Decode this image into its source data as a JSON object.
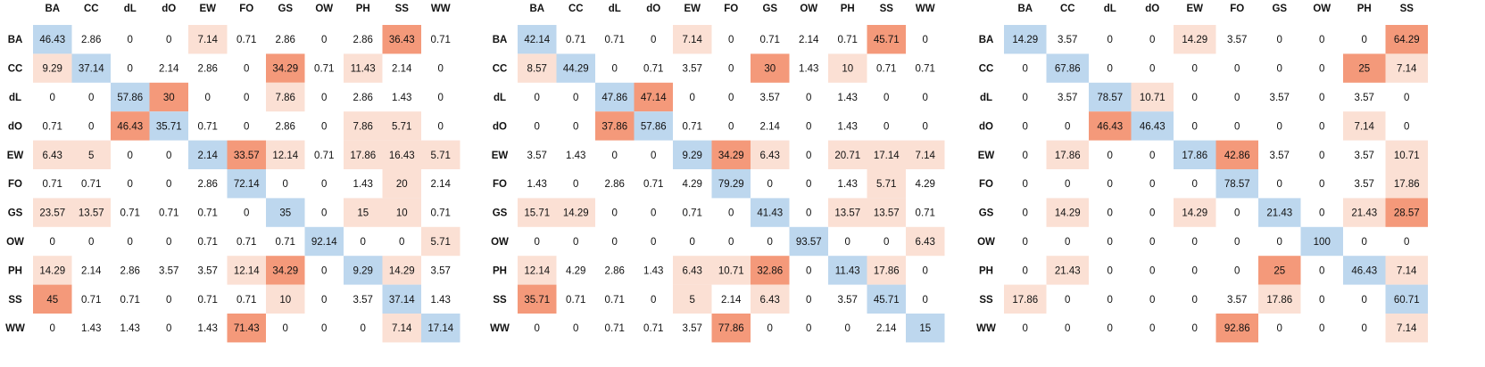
{
  "chart_data": [
    {
      "type": "heatmap",
      "columns": [
        "BA",
        "CC",
        "dL",
        "dO",
        "EW",
        "FO",
        "GS",
        "OW",
        "PH",
        "SS",
        "WW"
      ],
      "rows": [
        "BA",
        "CC",
        "dL",
        "dO",
        "EW",
        "FO",
        "GS",
        "OW",
        "PH",
        "SS",
        "WW"
      ],
      "values": [
        [
          "46.43",
          "2.86",
          "0",
          "0",
          "7.14",
          "0.71",
          "2.86",
          "0",
          "2.86",
          "36.43",
          "0.71"
        ],
        [
          "9.29",
          "37.14",
          "0",
          "2.14",
          "2.86",
          "0",
          "34.29",
          "0.71",
          "11.43",
          "2.14",
          "0"
        ],
        [
          "0",
          "0",
          "57.86",
          "30",
          "0",
          "0",
          "7.86",
          "0",
          "2.86",
          "1.43",
          "0"
        ],
        [
          "0.71",
          "0",
          "46.43",
          "35.71",
          "0.71",
          "0",
          "2.86",
          "0",
          "7.86",
          "5.71",
          "0"
        ],
        [
          "6.43",
          "5",
          "0",
          "0",
          "2.14",
          "33.57",
          "12.14",
          "0.71",
          "17.86",
          "16.43",
          "5.71"
        ],
        [
          "0.71",
          "0.71",
          "0",
          "0",
          "2.86",
          "72.14",
          "0",
          "0",
          "1.43",
          "20",
          "2.14"
        ],
        [
          "23.57",
          "13.57",
          "0.71",
          "0.71",
          "0.71",
          "0",
          "35",
          "0",
          "15",
          "10",
          "0.71"
        ],
        [
          "0",
          "0",
          "0",
          "0",
          "0.71",
          "0.71",
          "0.71",
          "92.14",
          "0",
          "0",
          "5.71"
        ],
        [
          "14.29",
          "2.14",
          "2.86",
          "3.57",
          "3.57",
          "12.14",
          "34.29",
          "0",
          "9.29",
          "14.29",
          "3.57"
        ],
        [
          "45",
          "0.71",
          "0.71",
          "0",
          "0.71",
          "0.71",
          "10",
          "0",
          "3.57",
          "37.14",
          "1.43"
        ],
        [
          "0",
          "1.43",
          "1.43",
          "0",
          "1.43",
          "71.43",
          "0",
          "0",
          "0",
          "7.14",
          "17.14"
        ]
      ]
    },
    {
      "type": "heatmap",
      "columns": [
        "BA",
        "CC",
        "dL",
        "dO",
        "EW",
        "FO",
        "GS",
        "OW",
        "PH",
        "SS",
        "WW"
      ],
      "rows": [
        "BA",
        "CC",
        "dL",
        "dO",
        "EW",
        "FO",
        "GS",
        "OW",
        "PH",
        "SS",
        "WW"
      ],
      "values": [
        [
          "42.14",
          "0.71",
          "0.71",
          "0",
          "7.14",
          "0",
          "0.71",
          "2.14",
          "0.71",
          "45.71",
          "0"
        ],
        [
          "8.57",
          "44.29",
          "0",
          "0.71",
          "3.57",
          "0",
          "30",
          "1.43",
          "10",
          "0.71",
          "0.71"
        ],
        [
          "0",
          "0",
          "47.86",
          "47.14",
          "0",
          "0",
          "3.57",
          "0",
          "1.43",
          "0",
          "0"
        ],
        [
          "0",
          "0",
          "37.86",
          "57.86",
          "0.71",
          "0",
          "2.14",
          "0",
          "1.43",
          "0",
          "0"
        ],
        [
          "3.57",
          "1.43",
          "0",
          "0",
          "9.29",
          "34.29",
          "6.43",
          "0",
          "20.71",
          "17.14",
          "7.14"
        ],
        [
          "1.43",
          "0",
          "2.86",
          "0.71",
          "4.29",
          "79.29",
          "0",
          "0",
          "1.43",
          "5.71",
          "4.29"
        ],
        [
          "15.71",
          "14.29",
          "0",
          "0",
          "0.71",
          "0",
          "41.43",
          "0",
          "13.57",
          "13.57",
          "0.71"
        ],
        [
          "0",
          "0",
          "0",
          "0",
          "0",
          "0",
          "0",
          "93.57",
          "0",
          "0",
          "6.43"
        ],
        [
          "12.14",
          "4.29",
          "2.86",
          "1.43",
          "6.43",
          "10.71",
          "32.86",
          "0",
          "11.43",
          "17.86",
          "0"
        ],
        [
          "35.71",
          "0.71",
          "0.71",
          "0",
          "5",
          "2.14",
          "6.43",
          "0",
          "3.57",
          "45.71",
          "0"
        ],
        [
          "0",
          "0",
          "0.71",
          "0.71",
          "3.57",
          "77.86",
          "0",
          "0",
          "0",
          "2.14",
          "15"
        ]
      ]
    },
    {
      "type": "heatmap",
      "columns": [
        "BA",
        "CC",
        "dL",
        "dO",
        "EW",
        "FO",
        "GS",
        "OW",
        "PH",
        "SS"
      ],
      "rows": [
        "BA",
        "CC",
        "dL",
        "dO",
        "EW",
        "FO",
        "GS",
        "OW",
        "PH",
        "SS",
        "WW"
      ],
      "values": [
        [
          "14.29",
          "3.57",
          "0",
          "0",
          "14.29",
          "3.57",
          "0",
          "0",
          "0",
          "64.29"
        ],
        [
          "0",
          "67.86",
          "0",
          "0",
          "0",
          "0",
          "0",
          "0",
          "25",
          "7.14"
        ],
        [
          "0",
          "3.57",
          "78.57",
          "10.71",
          "0",
          "0",
          "3.57",
          "0",
          "3.57",
          "0"
        ],
        [
          "0",
          "0",
          "46.43",
          "46.43",
          "0",
          "0",
          "0",
          "0",
          "7.14",
          "0"
        ],
        [
          "0",
          "17.86",
          "0",
          "0",
          "17.86",
          "42.86",
          "3.57",
          "0",
          "3.57",
          "10.71"
        ],
        [
          "0",
          "0",
          "0",
          "0",
          "0",
          "78.57",
          "0",
          "0",
          "3.57",
          "17.86"
        ],
        [
          "0",
          "14.29",
          "0",
          "0",
          "14.29",
          "0",
          "21.43",
          "0",
          "21.43",
          "28.57"
        ],
        [
          "0",
          "0",
          "0",
          "0",
          "0",
          "0",
          "0",
          "100",
          "0",
          "0"
        ],
        [
          "0",
          "21.43",
          "0",
          "0",
          "0",
          "0",
          "25",
          "0",
          "46.43",
          "7.14"
        ],
        [
          "17.86",
          "0",
          "0",
          "0",
          "0",
          "3.57",
          "17.86",
          "0",
          "0",
          "60.71"
        ],
        [
          "0",
          "0",
          "0",
          "0",
          "0",
          "92.86",
          "0",
          "0",
          "0",
          "7.14"
        ]
      ]
    }
  ]
}
